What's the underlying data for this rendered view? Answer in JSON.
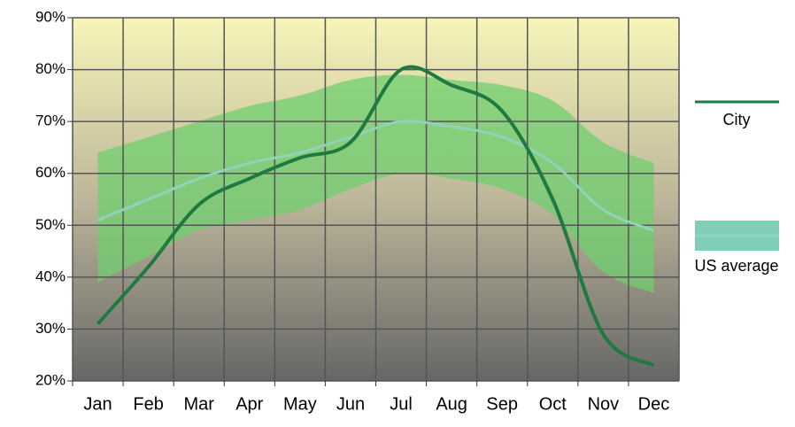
{
  "chart_data": {
    "type": "line",
    "categories": [
      "Jan",
      "Feb",
      "Mar",
      "Apr",
      "May",
      "Jun",
      "Jul",
      "Aug",
      "Sep",
      "Oct",
      "Nov",
      "Dec"
    ],
    "series": [
      {
        "name": "City",
        "color": "#1f7a3f",
        "values": [
          31,
          42,
          54,
          59,
          63,
          66,
          80,
          77,
          72,
          55,
          29,
          23
        ]
      },
      {
        "name": "US average",
        "color": "#8fd3b8",
        "band_color": "#6fcf6f",
        "values": [
          51,
          55,
          59,
          62,
          64,
          67,
          70,
          69,
          67,
          62,
          53,
          49
        ],
        "low": [
          39,
          44,
          49,
          51,
          53,
          57,
          60,
          59,
          57,
          52,
          41,
          37
        ],
        "high": [
          64,
          67,
          70,
          73,
          75,
          78,
          79,
          78,
          77,
          74,
          66,
          62
        ]
      }
    ],
    "ylim": [
      20,
      90
    ],
    "yticks": [
      {
        "value": 20,
        "label": "20%"
      },
      {
        "value": 30,
        "label": "30%"
      },
      {
        "value": 40,
        "label": "40%"
      },
      {
        "value": 50,
        "label": "50%"
      },
      {
        "value": 60,
        "label": "60%"
      },
      {
        "value": 70,
        "label": "70%"
      },
      {
        "value": 80,
        "label": "80%"
      },
      {
        "value": 90,
        "label": "90%"
      }
    ],
    "grid": true
  }
}
